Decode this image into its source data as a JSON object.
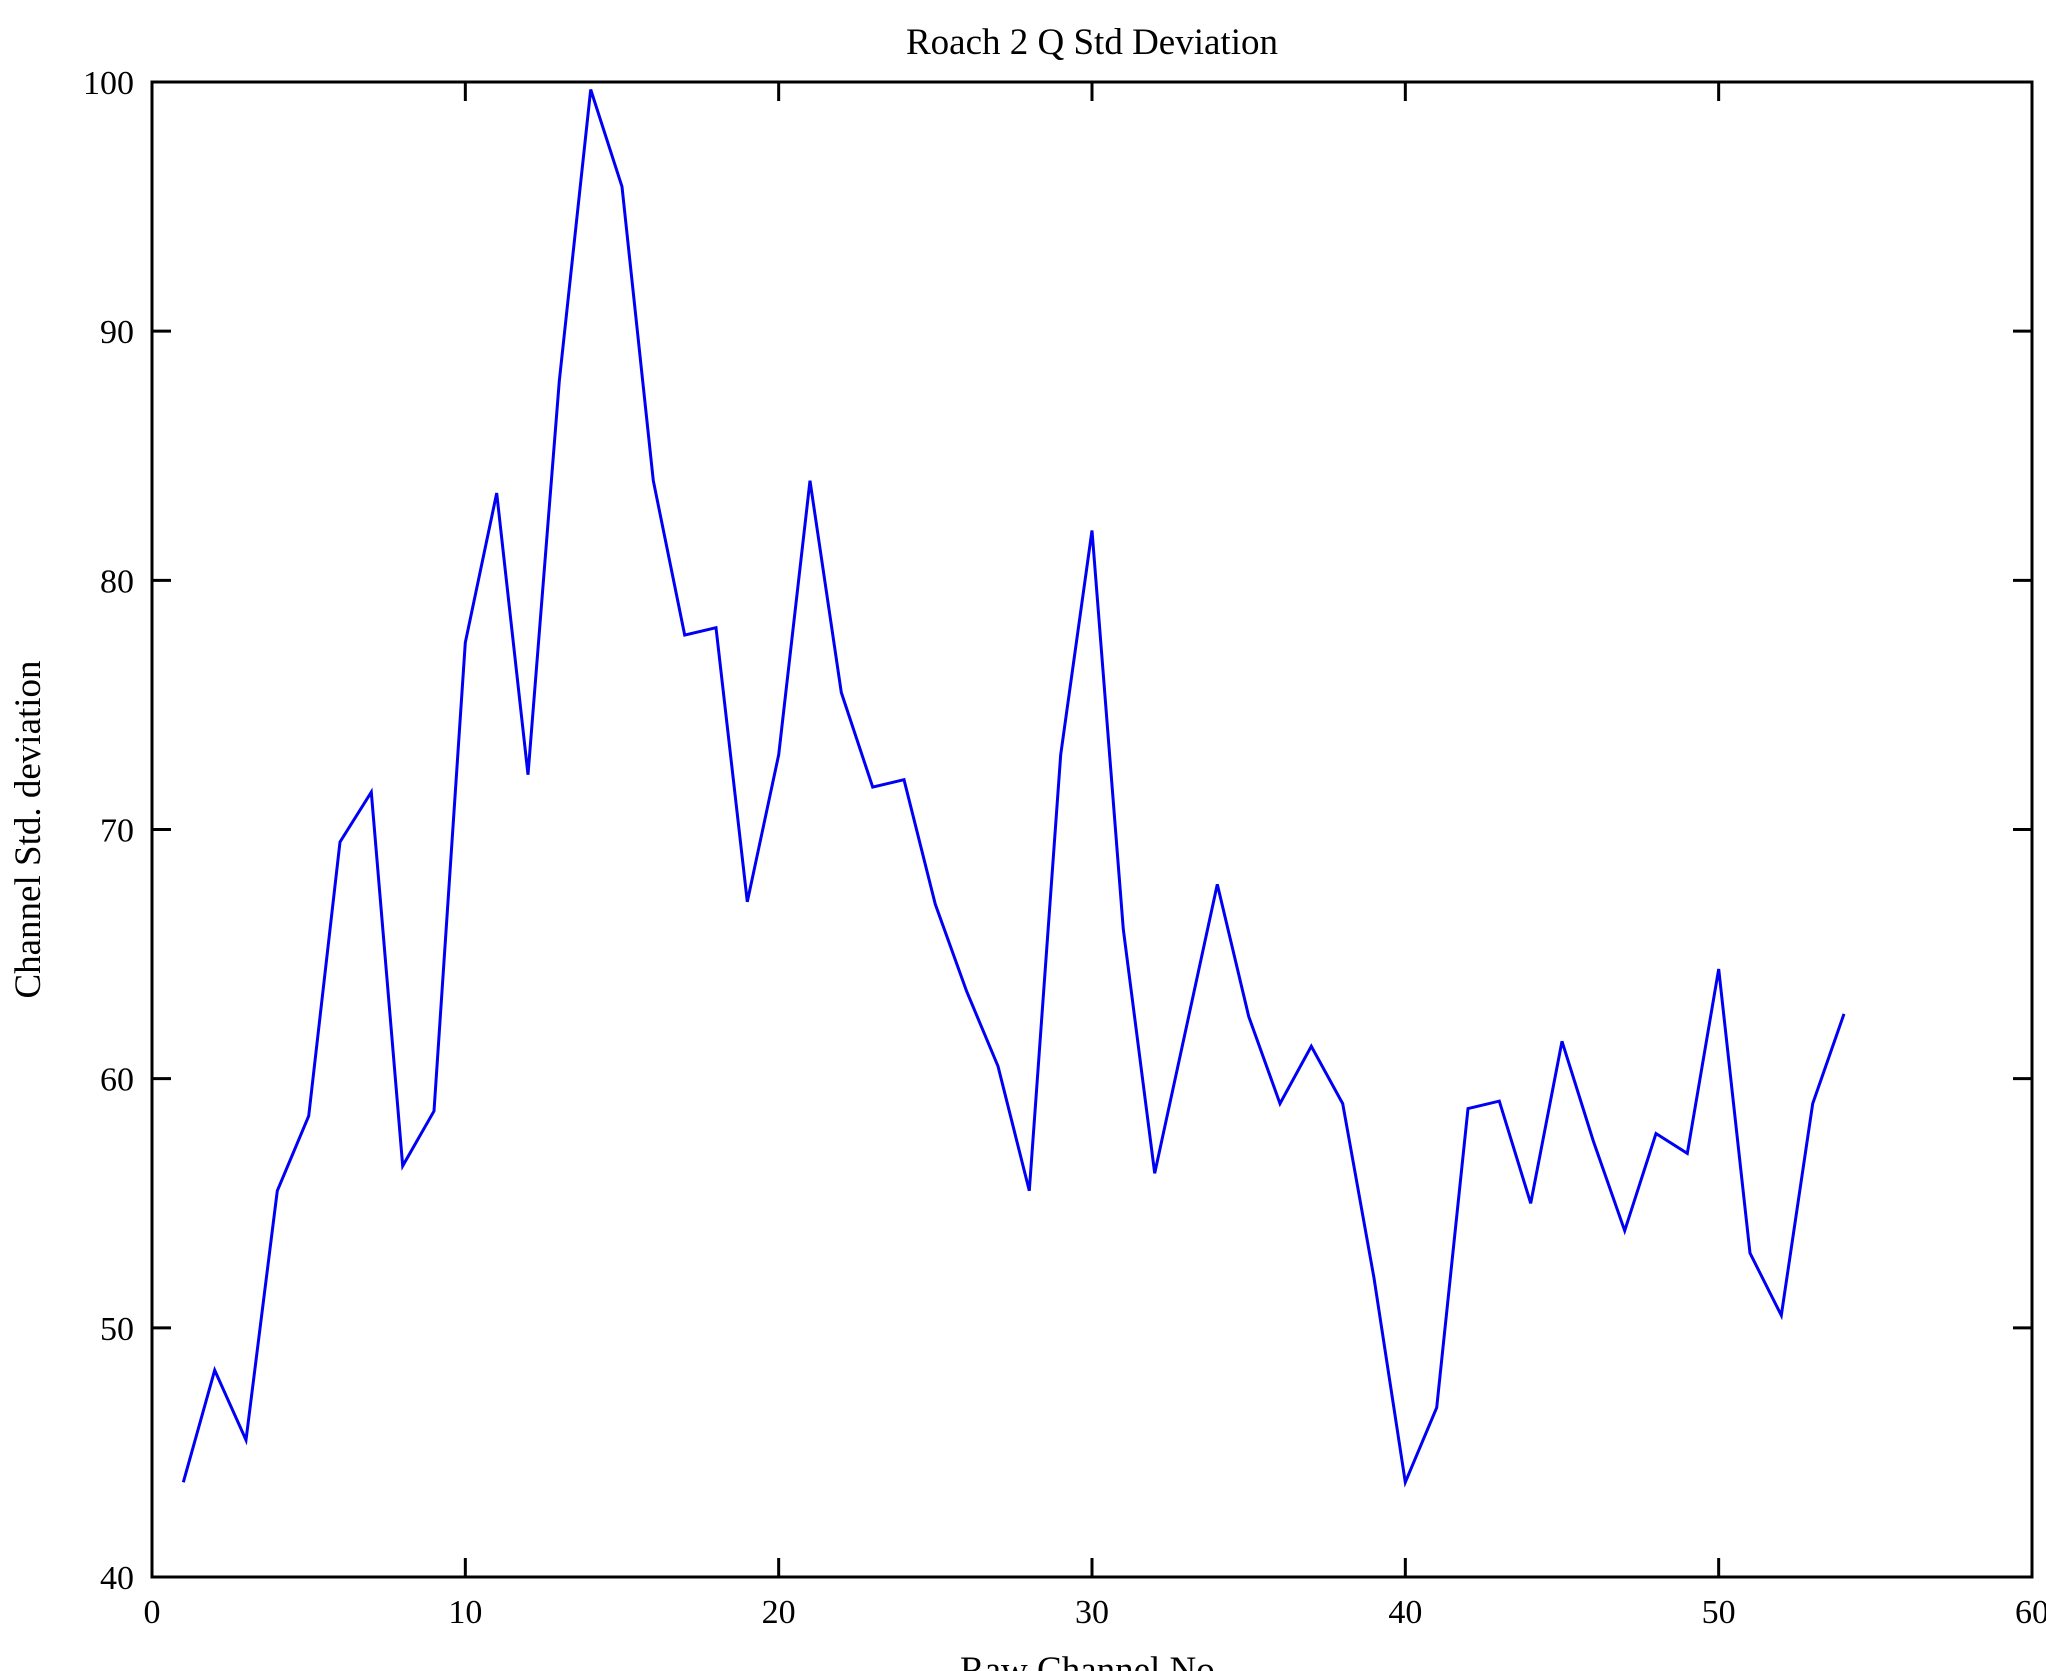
{
  "chart_data": {
    "type": "line",
    "title": "Roach 2 Q Std Deviation",
    "xlabel": "Raw Channel No.",
    "ylabel": "Channel Std. deviation",
    "xlim": [
      0,
      60
    ],
    "ylim": [
      40,
      100
    ],
    "x_ticks": [
      0,
      10,
      20,
      30,
      40,
      50,
      60
    ],
    "y_ticks": [
      40,
      50,
      60,
      70,
      80,
      90,
      100
    ],
    "grid": false,
    "legend": "none",
    "line_color": "#0000f5",
    "axis_color": "#000000",
    "series": [
      {
        "name": "Channel Std deviation",
        "x": [
          1,
          2,
          3,
          4,
          5,
          6,
          7,
          8,
          9,
          10,
          11,
          12,
          13,
          14,
          15,
          16,
          17,
          18,
          19,
          20,
          21,
          22,
          23,
          24,
          25,
          26,
          27,
          28,
          29,
          30,
          31,
          32,
          33,
          34,
          35,
          36,
          37,
          38,
          39,
          40,
          41,
          42,
          43,
          44,
          45,
          46,
          47,
          48,
          49,
          50,
          51,
          52,
          53,
          54
        ],
        "values": [
          43.8,
          48.3,
          45.5,
          55.5,
          58.5,
          69.5,
          71.5,
          56.5,
          58.7,
          77.5,
          83.5,
          72.2,
          88.0,
          99.7,
          95.8,
          84.0,
          77.8,
          78.1,
          67.1,
          73.0,
          84.0,
          75.5,
          71.7,
          72.0,
          67.0,
          63.5,
          60.5,
          55.5,
          73.0,
          82.0,
          66.0,
          56.2,
          62.0,
          67.8,
          62.5,
          59.0,
          61.3,
          59.0,
          52.0,
          43.8,
          46.8,
          58.8,
          59.1,
          55.0,
          61.5,
          57.5,
          53.9,
          57.8,
          57.0,
          64.4,
          53.0,
          50.5,
          59.0,
          62.6
        ]
      }
    ]
  }
}
